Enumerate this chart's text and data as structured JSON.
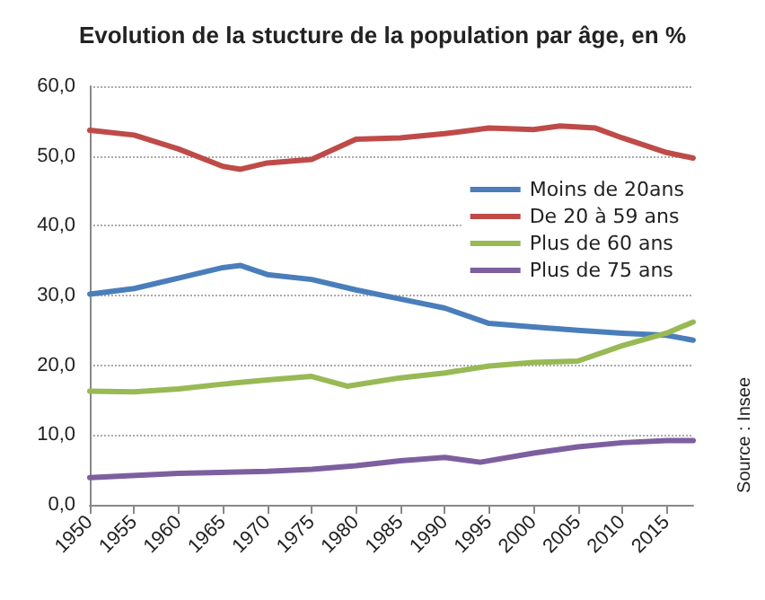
{
  "chart_data": {
    "type": "line",
    "title": "Evolution de la stucture de la population par âge, en %",
    "annotations": [
      "Source : Insee"
    ],
    "xlim": [
      1950,
      2018
    ],
    "xticks": [
      1950,
      1955,
      1960,
      1965,
      1970,
      1975,
      1980,
      1985,
      1990,
      1995,
      2000,
      2005,
      2010,
      2015
    ],
    "ylim": [
      0,
      60
    ],
    "yticks": [
      {
        "value": 0,
        "label": "0,0"
      },
      {
        "value": 10,
        "label": "10,0"
      },
      {
        "value": 20,
        "label": "20,0"
      },
      {
        "value": 30,
        "label": "30,0"
      },
      {
        "value": 40,
        "label": "40,0"
      },
      {
        "value": 50,
        "label": "50,0"
      },
      {
        "value": 60,
        "label": "60,0"
      }
    ],
    "grid": "y",
    "legend": "right",
    "marker": "none",
    "line_style": "solid",
    "series": [
      {
        "name": "Moins de 20ans",
        "color": "#4a7ebb",
        "x": [
          1950,
          1955,
          1960,
          1965,
          1967,
          1970,
          1975,
          1980,
          1985,
          1990,
          1995,
          2000,
          2005,
          2010,
          2015,
          2018
        ],
        "values": [
          30.2,
          31,
          32.5,
          34,
          34.3,
          33,
          32.3,
          30.8,
          29.5,
          28.2,
          26,
          25.5,
          25,
          24.6,
          24.3,
          23.6
        ]
      },
      {
        "name": "De 20 à 59 ans",
        "color": "#be4b48",
        "x": [
          1950,
          1955,
          1960,
          1965,
          1967,
          1970,
          1975,
          1980,
          1985,
          1990,
          1995,
          2000,
          2003,
          2007,
          2010,
          2015,
          2018
        ],
        "values": [
          53.7,
          53,
          51,
          48.5,
          48.1,
          49,
          49.5,
          52.4,
          52.6,
          53.2,
          54,
          53.8,
          54.3,
          54,
          52.6,
          50.5,
          49.7
        ]
      },
      {
        "name": "Plus de 60 ans",
        "color": "#98b954",
        "x": [
          1950,
          1955,
          1960,
          1965,
          1970,
          1975,
          1979,
          1985,
          1990,
          1995,
          2000,
          2005,
          2010,
          2015,
          2018
        ],
        "values": [
          16.3,
          16.2,
          16.6,
          17.3,
          17.9,
          18.4,
          17,
          18.2,
          18.9,
          19.9,
          20.4,
          20.6,
          22.8,
          24.6,
          26.2
        ]
      },
      {
        "name": "Plus de 75 ans",
        "color": "#7d5fa0",
        "x": [
          1950,
          1960,
          1970,
          1975,
          1980,
          1985,
          1990,
          1994,
          2000,
          2005,
          2010,
          2015,
          2018
        ],
        "values": [
          3.9,
          4.5,
          4.8,
          5.1,
          5.6,
          6.3,
          6.8,
          6.1,
          7.4,
          8.3,
          8.9,
          9.2,
          9.2
        ]
      }
    ]
  }
}
